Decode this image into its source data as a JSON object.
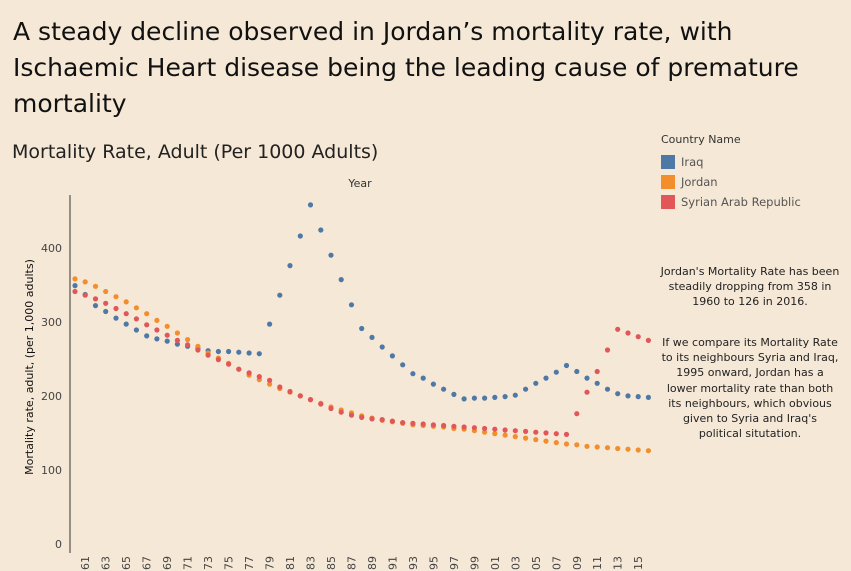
{
  "headline": "A steady decline observed in Jordan’s mortality rate, with Ischaemic Heart disease being the leading cause of premature mortality",
  "chart_data": {
    "type": "scatter",
    "title": "Mortality Rate, Adult (Per 1000 Adults)",
    "xlabel": "Year",
    "ylabel": "Mortality rate, adult, (per 1,000 adults)",
    "xlim": [
      1960,
      2016
    ],
    "ylim": [
      0,
      470
    ],
    "yticks": [
      0,
      100,
      200,
      300,
      400
    ],
    "xtick_labels": [
      "61",
      "63",
      "65",
      "67",
      "69",
      "71",
      "73",
      "75",
      "77",
      "79",
      "81",
      "83",
      "85",
      "87",
      "89",
      "91",
      "93",
      "95",
      "97",
      "99",
      "01",
      "03",
      "05",
      "07",
      "09",
      "11",
      "13",
      "15"
    ],
    "grid": false,
    "legend_title": "Country Name",
    "legend_position": "top-right",
    "series": [
      {
        "name": "Iraq",
        "color": "#4e79a7",
        "x": [
          1960,
          1961,
          1962,
          1963,
          1964,
          1965,
          1966,
          1967,
          1968,
          1969,
          1970,
          1971,
          1972,
          1973,
          1974,
          1975,
          1976,
          1977,
          1978,
          1979,
          1980,
          1981,
          1982,
          1983,
          1984,
          1985,
          1986,
          1987,
          1988,
          1989,
          1990,
          1991,
          1992,
          1993,
          1994,
          1995,
          1996,
          1997,
          1998,
          1999,
          2000,
          2001,
          2002,
          2003,
          2004,
          2005,
          2006,
          2007,
          2008,
          2009,
          2010,
          2011,
          2012,
          2013,
          2014,
          2015,
          2016
        ],
        "y": [
          349,
          337,
          322,
          314,
          305,
          297,
          289,
          281,
          277,
          274,
          270,
          267,
          264,
          261,
          260,
          260,
          259,
          258,
          257,
          297,
          336,
          376,
          416,
          458,
          424,
          390,
          357,
          323,
          291,
          279,
          266,
          254,
          242,
          230,
          224,
          216,
          209,
          202,
          196,
          197,
          197,
          198,
          199,
          201,
          209,
          217,
          224,
          232,
          241,
          233,
          224,
          217,
          209,
          203,
          200,
          199,
          198
        ]
      },
      {
        "name": "Jordan",
        "color": "#f28e2b",
        "x": [
          1960,
          1961,
          1962,
          1963,
          1964,
          1965,
          1966,
          1967,
          1968,
          1969,
          1970,
          1971,
          1972,
          1973,
          1974,
          1975,
          1976,
          1977,
          1978,
          1979,
          1980,
          1981,
          1982,
          1983,
          1984,
          1985,
          1986,
          1987,
          1988,
          1989,
          1990,
          1991,
          1992,
          1993,
          1994,
          1995,
          1996,
          1997,
          1998,
          1999,
          2000,
          2001,
          2002,
          2003,
          2004,
          2005,
          2006,
          2007,
          2008,
          2009,
          2010,
          2011,
          2012,
          2013,
          2014,
          2015,
          2016
        ],
        "y": [
          358,
          354,
          348,
          341,
          334,
          327,
          319,
          311,
          302,
          294,
          285,
          276,
          267,
          258,
          251,
          244,
          236,
          228,
          222,
          216,
          210,
          205,
          200,
          195,
          190,
          185,
          181,
          177,
          173,
          170,
          167,
          165,
          163,
          161,
          160,
          159,
          158,
          156,
          155,
          153,
          151,
          149,
          147,
          145,
          143,
          141,
          139,
          137,
          135,
          134,
          132,
          131,
          130,
          129,
          128,
          127,
          126
        ]
      },
      {
        "name": "Syrian Arab Republic",
        "color": "#e15759",
        "x": [
          1960,
          1961,
          1962,
          1963,
          1964,
          1965,
          1966,
          1967,
          1968,
          1969,
          1970,
          1971,
          1972,
          1973,
          1974,
          1975,
          1976,
          1977,
          1978,
          1979,
          1980,
          1981,
          1982,
          1983,
          1984,
          1985,
          1986,
          1987,
          1988,
          1989,
          1990,
          1991,
          1992,
          1993,
          1994,
          1995,
          1996,
          1997,
          1998,
          1999,
          2000,
          2001,
          2002,
          2003,
          2004,
          2005,
          2006,
          2007,
          2008,
          2009,
          2010,
          2011,
          2012,
          2013,
          2014,
          2015,
          2016
        ],
        "y": [
          341,
          336,
          331,
          325,
          318,
          311,
          304,
          296,
          289,
          282,
          275,
          269,
          262,
          255,
          249,
          243,
          236,
          231,
          226,
          221,
          212,
          206,
          200,
          195,
          189,
          183,
          178,
          174,
          171,
          169,
          168,
          166,
          164,
          163,
          162,
          161,
          160,
          159,
          158,
          157,
          156,
          155,
          154,
          153,
          152,
          151,
          150,
          149,
          148,
          176,
          205,
          233,
          262,
          290,
          285,
          280,
          275
        ]
      }
    ]
  },
  "annotations": [
    "Jordan's Mortality Rate has been steadily dropping from 358 in 1960 to 126 in 2016.",
    "If we compare its Mortality Rate to its neighbours Syria and Iraq, 1995 onward, Jordan has a lower mortality rate than both its neighbours, which obvious given to Syria and Iraq's political situtation."
  ]
}
